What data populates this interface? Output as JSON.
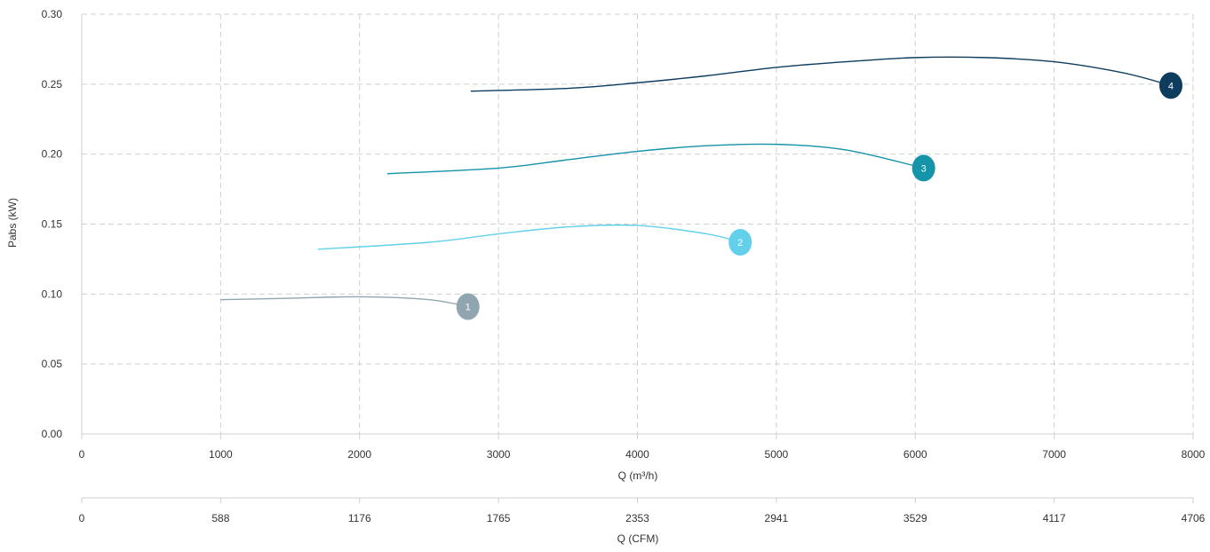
{
  "chart_data": {
    "type": "line",
    "xlabel": "Q (m³/h)",
    "ylabel": "Pabs (kW)",
    "secondary_xlabel": "Q (CFM)",
    "xlim": [
      0,
      8000
    ],
    "ylim": [
      0,
      0.3
    ],
    "x_ticks": [
      "0",
      "1000",
      "2000",
      "3000",
      "4000",
      "5000",
      "6000",
      "7000",
      "8000"
    ],
    "y_ticks": [
      "0.00",
      "0.05",
      "0.10",
      "0.15",
      "0.20",
      "0.25",
      "0.30"
    ],
    "secondary_x_ticks": [
      "0",
      "588",
      "1176",
      "1765",
      "2353",
      "2941",
      "3529",
      "4117",
      "4706"
    ],
    "grid": true,
    "series": [
      {
        "label": "1",
        "color": "#8fa6b1",
        "x": [
          1000,
          1500,
          2000,
          2500,
          2780
        ],
        "y": [
          0.096,
          0.097,
          0.098,
          0.096,
          0.091
        ]
      },
      {
        "label": "2",
        "color": "#62d0ea",
        "x": [
          1700,
          2500,
          3000,
          3500,
          4000,
          4500,
          4740
        ],
        "y": [
          0.132,
          0.137,
          0.143,
          0.148,
          0.149,
          0.143,
          0.137
        ]
      },
      {
        "label": "3",
        "color": "#1593a8",
        "x": [
          2200,
          3000,
          3500,
          4000,
          4500,
          5000,
          5500,
          6060
        ],
        "y": [
          0.186,
          0.19,
          0.196,
          0.202,
          0.206,
          0.207,
          0.203,
          0.19
        ]
      },
      {
        "label": "4",
        "color": "#0d3c5e",
        "x": [
          2800,
          3500,
          4000,
          4500,
          5000,
          5500,
          6000,
          6500,
          7000,
          7500,
          7840
        ],
        "y": [
          0.245,
          0.247,
          0.251,
          0.256,
          0.262,
          0.266,
          0.269,
          0.269,
          0.266,
          0.258,
          0.249
        ]
      }
    ]
  }
}
